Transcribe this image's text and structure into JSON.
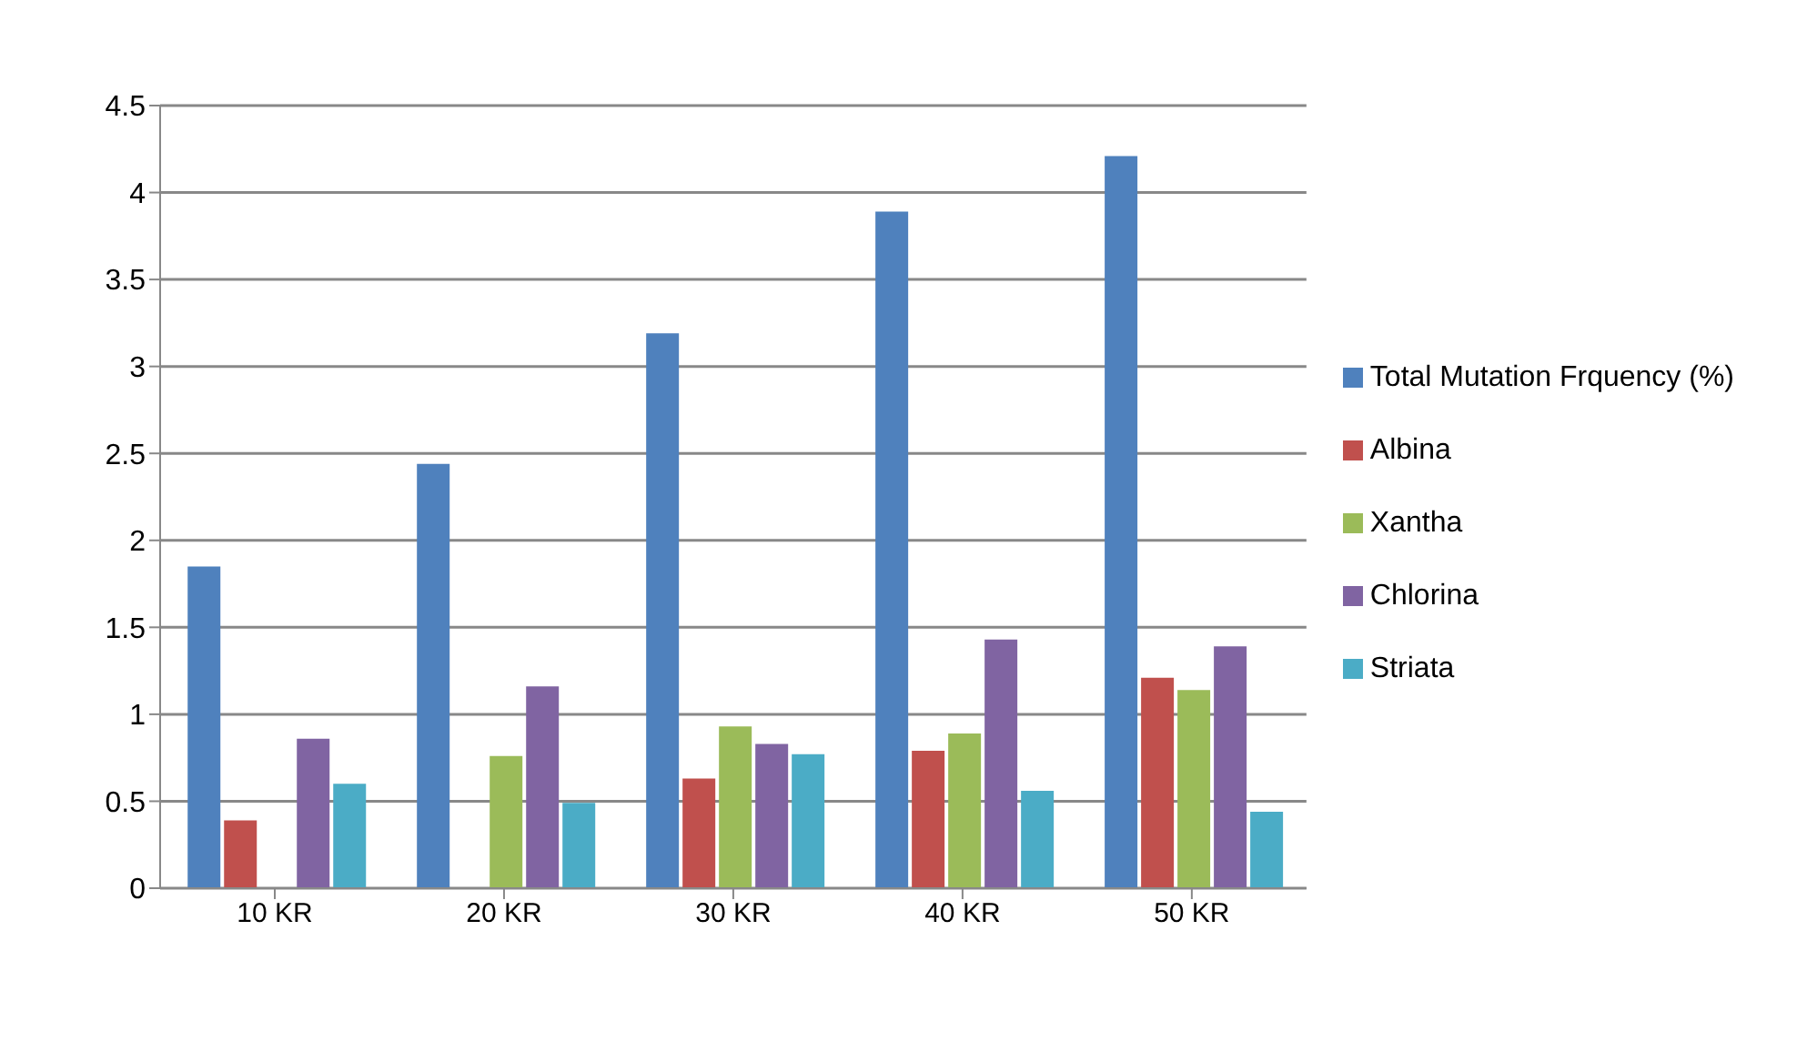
{
  "chart_data": {
    "type": "bar",
    "categories": [
      "10 KR",
      "20 KR",
      "30 KR",
      "40 KR",
      "50 KR"
    ],
    "series": [
      {
        "name": "Total Mutation Frquency (%)",
        "color": "#4f81bd",
        "values": [
          1.85,
          2.44,
          3.19,
          3.89,
          4.21
        ]
      },
      {
        "name": "Albina",
        "color": "#c0504d",
        "values": [
          0.39,
          0,
          0.63,
          0.79,
          1.21
        ]
      },
      {
        "name": "Xantha",
        "color": "#9bbb59",
        "values": [
          0,
          0.76,
          0.93,
          0.89,
          1.14
        ]
      },
      {
        "name": "Chlorina",
        "color": "#8064a2",
        "values": [
          0.86,
          1.16,
          0.83,
          1.43,
          1.39
        ]
      },
      {
        "name": "Striata",
        "color": "#4bacc6",
        "values": [
          0.6,
          0.49,
          0.77,
          0.56,
          0.44
        ]
      }
    ],
    "ylim": [
      0,
      4.5
    ],
    "yticks": [
      0,
      0.5,
      1,
      1.5,
      2,
      2.5,
      3,
      3.5,
      4,
      4.5
    ],
    "grid": "y",
    "legend": "right"
  }
}
